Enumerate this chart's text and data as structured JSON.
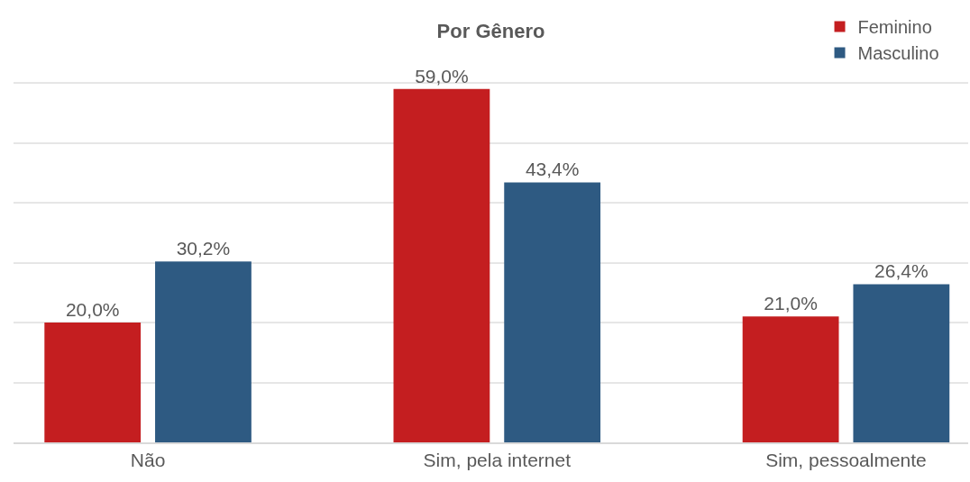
{
  "chart_data": {
    "type": "bar",
    "title": "Por Gênero",
    "categories": [
      "Não",
      "Sim, pela internet",
      "Sim, pessoalmente"
    ],
    "series": [
      {
        "name": "Feminino",
        "color": "#c41e20",
        "values": [
          20.0,
          59.0,
          21.0
        ],
        "value_labels": [
          "20,0%",
          "59,0%",
          "21,0%"
        ]
      },
      {
        "name": "Masculino",
        "color": "#2e5a82",
        "values": [
          30.2,
          43.4,
          26.4
        ],
        "value_labels": [
          "30,2%",
          "43,4%",
          "26,4%"
        ]
      }
    ],
    "yticks": [
      {
        "value": 0,
        "label": null
      },
      {
        "value": 10,
        "label": null
      },
      {
        "value": 20,
        "label": null
      },
      {
        "value": 30,
        "label": null
      },
      {
        "value": 40,
        "label": null
      },
      {
        "value": 50,
        "label": null
      },
      {
        "value": 60,
        "label": null
      }
    ],
    "tick_labels": "x",
    "grid": "y",
    "legend": "top right"
  }
}
